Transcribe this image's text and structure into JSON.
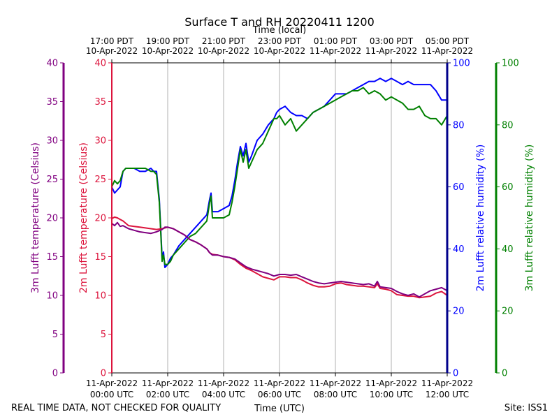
{
  "chart_data": {
    "type": "line",
    "title": "Surface T and RH 20220411 1200",
    "top_axis_label": "Time (local)",
    "xlabel": "Time (UTC)",
    "x_unit": "hours since 2022-04-11 00:00 UTC",
    "xlim": [
      0,
      12
    ],
    "bottom_ticks": [
      {
        "x": 0,
        "line1": "11-Apr-2022",
        "line2": "00:00 UTC"
      },
      {
        "x": 2,
        "line1": "11-Apr-2022",
        "line2": "02:00 UTC"
      },
      {
        "x": 4,
        "line1": "11-Apr-2022",
        "line2": "04:00 UTC"
      },
      {
        "x": 6,
        "line1": "11-Apr-2022",
        "line2": "06:00 UTC"
      },
      {
        "x": 8,
        "line1": "11-Apr-2022",
        "line2": "08:00 UTC"
      },
      {
        "x": 10,
        "line1": "11-Apr-2022",
        "line2": "10:00 UTC"
      },
      {
        "x": 12,
        "line1": "11-Apr-2022",
        "line2": "12:00 UTC"
      }
    ],
    "top_ticks": [
      {
        "x": 0,
        "line1": "17:00 PDT",
        "line2": "10-Apr-2022"
      },
      {
        "x": 2,
        "line1": "19:00 PDT",
        "line2": "10-Apr-2022"
      },
      {
        "x": 4,
        "line1": "21:00 PDT",
        "line2": "10-Apr-2022"
      },
      {
        "x": 6,
        "line1": "23:00 PDT",
        "line2": "10-Apr-2022"
      },
      {
        "x": 8,
        "line1": "01:00 PDT",
        "line2": "11-Apr-2022"
      },
      {
        "x": 10,
        "line1": "03:00 PDT",
        "line2": "11-Apr-2022"
      },
      {
        "x": 12,
        "line1": "05:00 PDT",
        "line2": "11-Apr-2022"
      }
    ],
    "grid": "vertical",
    "axes": [
      {
        "id": "t3",
        "label": "3m Lufft temperature (Celsius)",
        "color": "#800080",
        "range": [
          0,
          40
        ],
        "ticks": [
          "0",
          "5",
          "10",
          "15",
          "20",
          "25",
          "30",
          "35",
          "40"
        ]
      },
      {
        "id": "t2",
        "label": "2m Lufft temperature (Celsius)",
        "color": "#dc143c",
        "range": [
          0,
          40
        ],
        "ticks": [
          "0",
          "5",
          "10",
          "15",
          "20",
          "25",
          "30",
          "35",
          "40"
        ]
      },
      {
        "id": "rh2",
        "label": "2m Lufft relative humidity (%)",
        "color": "#0000ff",
        "axis_color": "#00008b",
        "range": [
          0,
          100
        ],
        "ticks": [
          "0",
          "20",
          "40",
          "60",
          "80",
          "100"
        ]
      },
      {
        "id": "rh3",
        "label": "3m Lufft relative humidity (%)",
        "color": "#008000",
        "range": [
          0,
          100
        ],
        "ticks": [
          "0",
          "20",
          "40",
          "60",
          "80",
          "100"
        ]
      }
    ],
    "series": [
      {
        "name": "3m Lufft temperature",
        "axis": "t3",
        "color": "#800080",
        "x": [
          0,
          0.1,
          0.2,
          0.3,
          0.4,
          0.6,
          0.8,
          1.0,
          1.2,
          1.4,
          1.6,
          1.8,
          1.9,
          2.0,
          2.2,
          2.4,
          2.6,
          2.8,
          3.0,
          3.2,
          3.4,
          3.5,
          3.6,
          3.8,
          4.0,
          4.2,
          4.4,
          4.6,
          4.8,
          5.0,
          5.2,
          5.4,
          5.6,
          5.8,
          6.0,
          6.2,
          6.4,
          6.6,
          6.8,
          7.0,
          7.2,
          7.4,
          7.6,
          7.8,
          8.0,
          8.2,
          8.4,
          8.6,
          8.8,
          9.0,
          9.2,
          9.4,
          9.5,
          9.6,
          9.8,
          10.0,
          10.2,
          10.4,
          10.6,
          10.8,
          11.0,
          11.2,
          11.4,
          11.6,
          11.8,
          12.0
        ],
        "values": [
          19.3,
          19.0,
          19.4,
          18.9,
          19.0,
          18.6,
          18.4,
          18.2,
          18.1,
          18.0,
          18.2,
          18.5,
          18.8,
          18.8,
          18.6,
          18.2,
          17.8,
          17.2,
          16.9,
          16.5,
          16.0,
          15.5,
          15.2,
          15.2,
          15.0,
          14.9,
          14.7,
          14.2,
          13.7,
          13.4,
          13.2,
          13.0,
          12.8,
          12.5,
          12.7,
          12.7,
          12.6,
          12.7,
          12.4,
          12.1,
          11.8,
          11.6,
          11.5,
          11.6,
          11.7,
          11.8,
          11.7,
          11.6,
          11.5,
          11.4,
          11.5,
          11.2,
          11.8,
          11.1,
          11.0,
          10.9,
          10.5,
          10.2,
          10.0,
          10.2,
          9.8,
          10.2,
          10.6,
          10.8,
          11.0,
          10.6
        ]
      },
      {
        "name": "2m Lufft temperature",
        "axis": "t2",
        "color": "#dc143c",
        "x": [
          0,
          0.1,
          0.2,
          0.3,
          0.4,
          0.6,
          0.8,
          1.0,
          1.2,
          1.4,
          1.6,
          1.8,
          1.9,
          2.0,
          2.2,
          2.4,
          2.6,
          2.8,
          3.0,
          3.2,
          3.4,
          3.5,
          3.6,
          3.8,
          4.0,
          4.2,
          4.4,
          4.6,
          4.8,
          5.0,
          5.2,
          5.4,
          5.6,
          5.8,
          6.0,
          6.2,
          6.4,
          6.6,
          6.8,
          7.0,
          7.2,
          7.4,
          7.6,
          7.8,
          8.0,
          8.2,
          8.4,
          8.6,
          8.8,
          9.0,
          9.2,
          9.4,
          9.5,
          9.6,
          9.8,
          10.0,
          10.2,
          10.4,
          10.6,
          10.8,
          11.0,
          11.2,
          11.4,
          11.6,
          11.8,
          12.0
        ],
        "values": [
          19.9,
          20.1,
          20.0,
          19.8,
          19.6,
          19.0,
          18.9,
          18.8,
          18.7,
          18.6,
          18.5,
          18.6,
          18.7,
          18.8,
          18.6,
          18.2,
          17.8,
          17.2,
          16.9,
          16.5,
          16.0,
          15.5,
          15.3,
          15.2,
          15.0,
          14.9,
          14.6,
          14.0,
          13.5,
          13.2,
          12.8,
          12.4,
          12.2,
          12.0,
          12.4,
          12.4,
          12.3,
          12.3,
          12.0,
          11.6,
          11.3,
          11.1,
          11.1,
          11.2,
          11.5,
          11.6,
          11.4,
          11.3,
          11.2,
          11.2,
          11.1,
          11.0,
          11.5,
          10.9,
          10.8,
          10.6,
          10.1,
          10.0,
          9.9,
          9.9,
          9.7,
          9.8,
          9.9,
          10.3,
          10.5,
          10.0
        ]
      },
      {
        "name": "2m Lufft relative humidity",
        "axis": "rh2",
        "color": "#0000ff",
        "x": [
          0,
          0.1,
          0.2,
          0.3,
          0.4,
          0.5,
          0.6,
          0.8,
          1.0,
          1.2,
          1.4,
          1.5,
          1.6,
          1.7,
          1.8,
          1.85,
          1.9,
          2.0,
          2.1,
          2.2,
          2.4,
          2.6,
          2.8,
          3.0,
          3.2,
          3.4,
          3.5,
          3.55,
          3.6,
          3.8,
          4.0,
          4.2,
          4.3,
          4.4,
          4.5,
          4.6,
          4.7,
          4.8,
          4.9,
          5.0,
          5.2,
          5.4,
          5.6,
          5.8,
          5.9,
          6.0,
          6.2,
          6.4,
          6.6,
          6.8,
          7.0,
          7.2,
          7.4,
          7.6,
          7.8,
          8.0,
          8.2,
          8.4,
          8.6,
          8.8,
          9.0,
          9.2,
          9.4,
          9.6,
          9.8,
          10.0,
          10.2,
          10.4,
          10.6,
          10.8,
          11.0,
          11.2,
          11.4,
          11.6,
          11.8,
          12.0
        ],
        "values": [
          60,
          58,
          59,
          60,
          65,
          66,
          66,
          66,
          65,
          65,
          66,
          65,
          65,
          56,
          37,
          39,
          34,
          35,
          37,
          38,
          41,
          43,
          45,
          47,
          49,
          51,
          56,
          58,
          52,
          52,
          53,
          54,
          57,
          62,
          68,
          73,
          70,
          74,
          68,
          70,
          75,
          77,
          80,
          82,
          84,
          85,
          86,
          84,
          83,
          83,
          82,
          84,
          85,
          86,
          88,
          90,
          90,
          90,
          91,
          92,
          93,
          94,
          94,
          95,
          94,
          95,
          94,
          93,
          94,
          93,
          93,
          93,
          93,
          91,
          88,
          88
        ]
      },
      {
        "name": "3m Lufft relative humidity",
        "axis": "rh3",
        "color": "#008000",
        "x": [
          0,
          0.1,
          0.2,
          0.3,
          0.4,
          0.5,
          0.6,
          0.8,
          1.0,
          1.2,
          1.4,
          1.5,
          1.6,
          1.7,
          1.8,
          1.85,
          1.9,
          2.0,
          2.1,
          2.2,
          2.4,
          2.6,
          2.8,
          3.0,
          3.2,
          3.4,
          3.5,
          3.55,
          3.6,
          3.8,
          4.0,
          4.2,
          4.3,
          4.4,
          4.5,
          4.6,
          4.7,
          4.8,
          4.9,
          5.0,
          5.2,
          5.4,
          5.6,
          5.8,
          5.9,
          6.0,
          6.2,
          6.4,
          6.6,
          6.8,
          7.0,
          7.2,
          7.4,
          7.6,
          7.8,
          8.0,
          8.2,
          8.4,
          8.6,
          8.8,
          9.0,
          9.2,
          9.4,
          9.6,
          9.8,
          10.0,
          10.2,
          10.4,
          10.6,
          10.8,
          11.0,
          11.2,
          11.4,
          11.6,
          11.8,
          12.0
        ],
        "values": [
          60,
          62,
          61,
          62,
          65,
          66,
          66,
          66,
          66,
          66,
          65,
          65,
          64,
          55,
          36,
          38,
          35,
          35,
          36,
          38,
          40,
          42,
          44,
          45,
          47,
          49,
          55,
          57,
          50,
          50,
          50,
          51,
          55,
          60,
          66,
          72,
          68,
          72,
          66,
          68,
          72,
          74,
          78,
          82,
          82,
          83,
          80,
          82,
          78,
          80,
          82,
          84,
          85,
          86,
          87,
          88,
          89,
          90,
          91,
          91,
          92,
          90,
          91,
          90,
          88,
          89,
          88,
          87,
          85,
          85,
          86,
          83,
          82,
          82,
          80,
          83
        ]
      }
    ],
    "footer_left": "REAL TIME DATA, NOT CHECKED FOR QUALITY",
    "footer_right": "Site: ISS1"
  }
}
